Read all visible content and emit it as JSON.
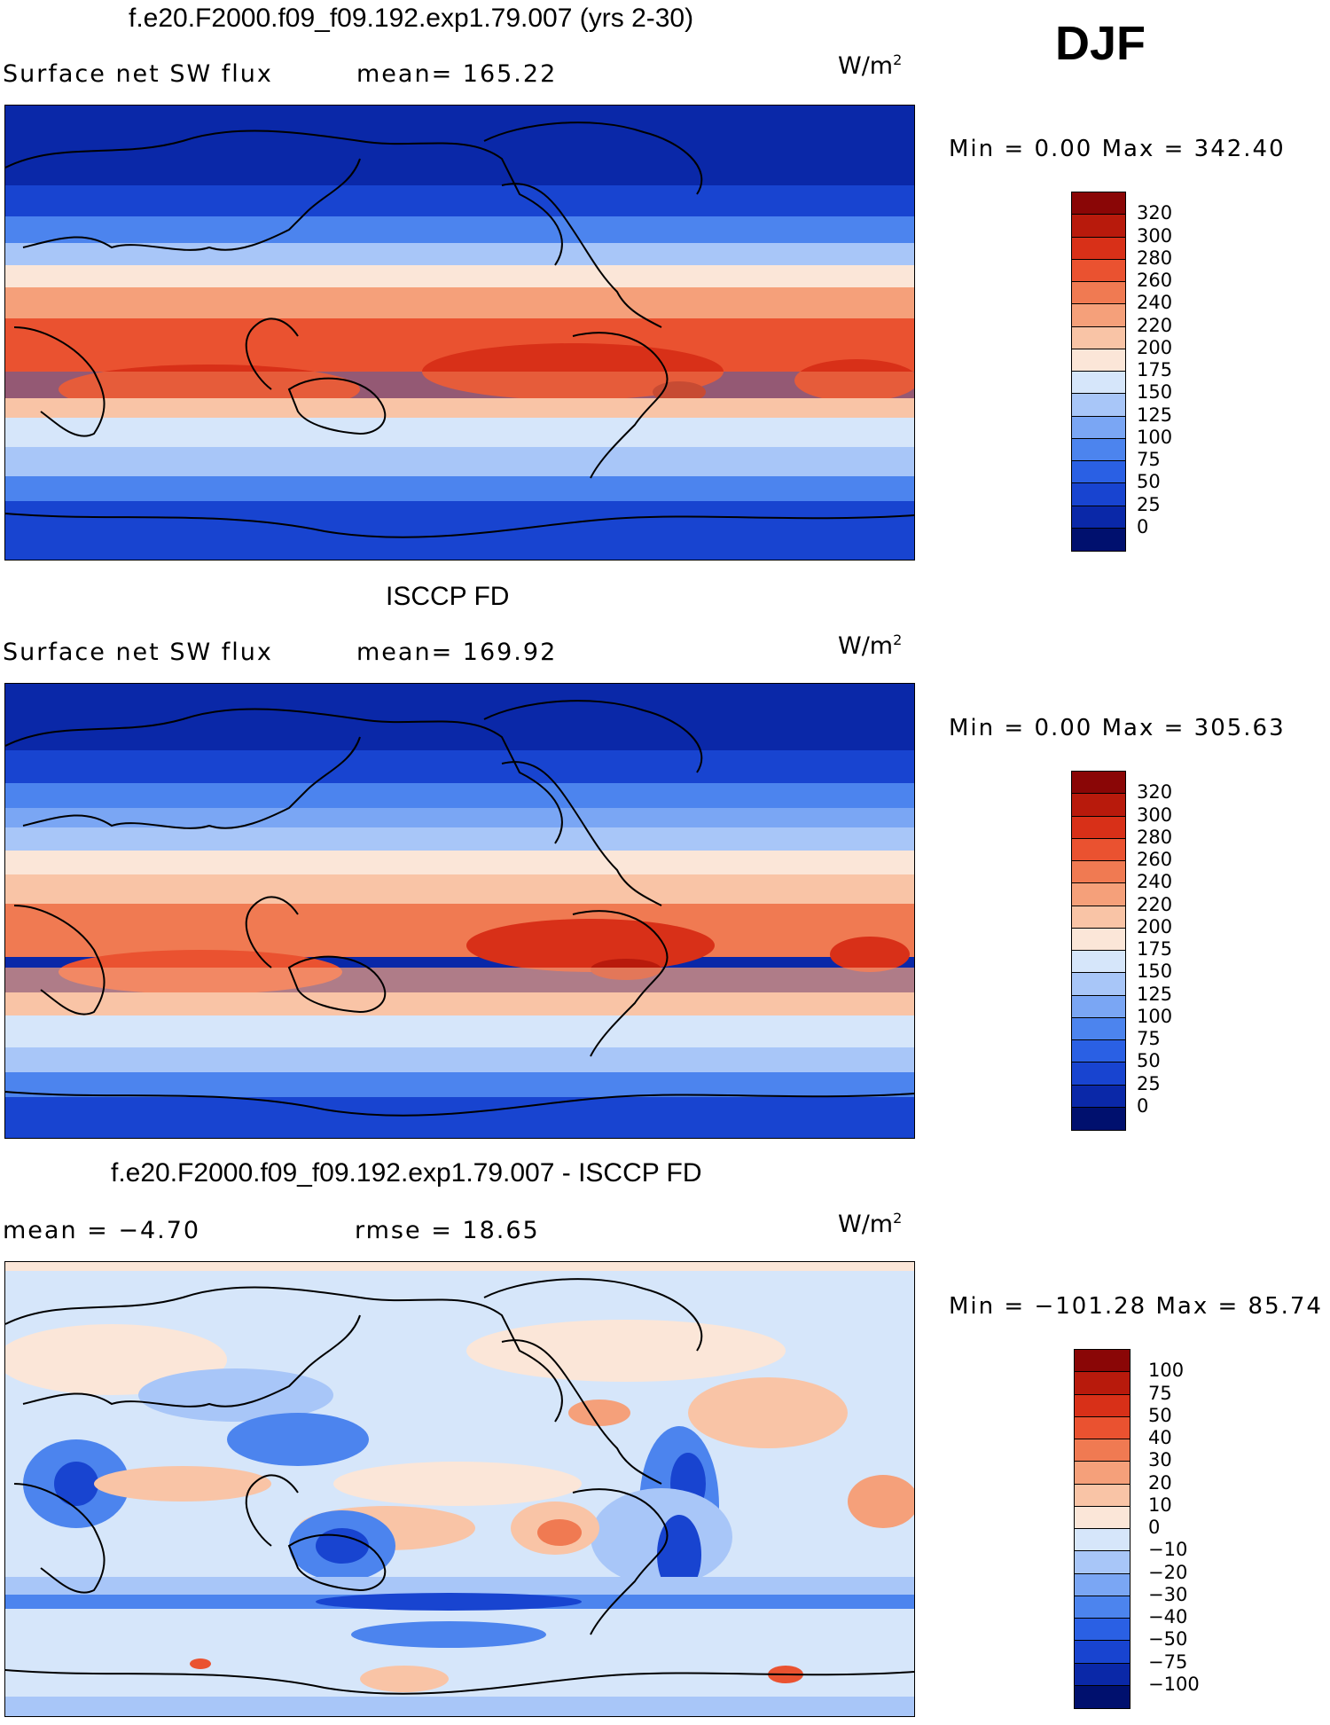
{
  "season": "DJF",
  "palettes": {
    "abs": [
      "#00106e",
      "#0a28a8",
      "#1844d0",
      "#2a60e4",
      "#4c84ee",
      "#7aa6f4",
      "#a8c6f8",
      "#d6e6fa",
      "#fbe6d8",
      "#f9c4a6",
      "#f5a07a",
      "#f07a52",
      "#ea5230",
      "#d83018",
      "#b81a0c",
      "#8a0606"
    ],
    "diff": [
      "#00106e",
      "#0a28a8",
      "#1844d0",
      "#2a60e4",
      "#4c84ee",
      "#7aa6f4",
      "#a8c6f8",
      "#d6e6fa",
      "#fbe6d8",
      "#f9c4a6",
      "#f5a07a",
      "#f07a52",
      "#ea5230",
      "#d83018",
      "#b81a0c",
      "#8a0606"
    ]
  },
  "panels": [
    {
      "id": "model",
      "title": "f.e20.F2000.f09_f09.192.exp1.79.007 (yrs 2-30)",
      "left_label": "Surface net SW flux",
      "right_label": "mean= 165.22",
      "units_base": "W/m",
      "units_exp": "2",
      "minmax": "Min =    0.00  Max =  342.40",
      "levels": [
        "320",
        "300",
        "280",
        "260",
        "240",
        "220",
        "200",
        "175",
        "150",
        "125",
        "100",
        "75",
        "50",
        "25",
        "0"
      ],
      "palette": "abs"
    },
    {
      "id": "obs",
      "title": "ISCCP FD",
      "left_label": "Surface net SW flux",
      "right_label": "mean= 169.92",
      "units_base": "W/m",
      "units_exp": "2",
      "minmax": "Min =    0.00  Max =  305.63",
      "levels": [
        "320",
        "300",
        "280",
        "260",
        "240",
        "220",
        "200",
        "175",
        "150",
        "125",
        "100",
        "75",
        "50",
        "25",
        "0"
      ],
      "palette": "abs"
    },
    {
      "id": "diff",
      "title": "f.e20.F2000.f09_f09.192.exp1.79.007 - ISCCP FD",
      "left_label": "mean =   −4.70",
      "right_label": "rmse =    18.65",
      "units_base": "W/m",
      "units_exp": "2",
      "minmax": "Min = −101.28  Max =   85.74",
      "levels": [
        "100",
        "75",
        "50",
        "40",
        "30",
        "20",
        "10",
        "0",
        "−10",
        "−20",
        "−30",
        "−40",
        "−50",
        "−75",
        "−100"
      ],
      "palette": "diff"
    }
  ]
}
